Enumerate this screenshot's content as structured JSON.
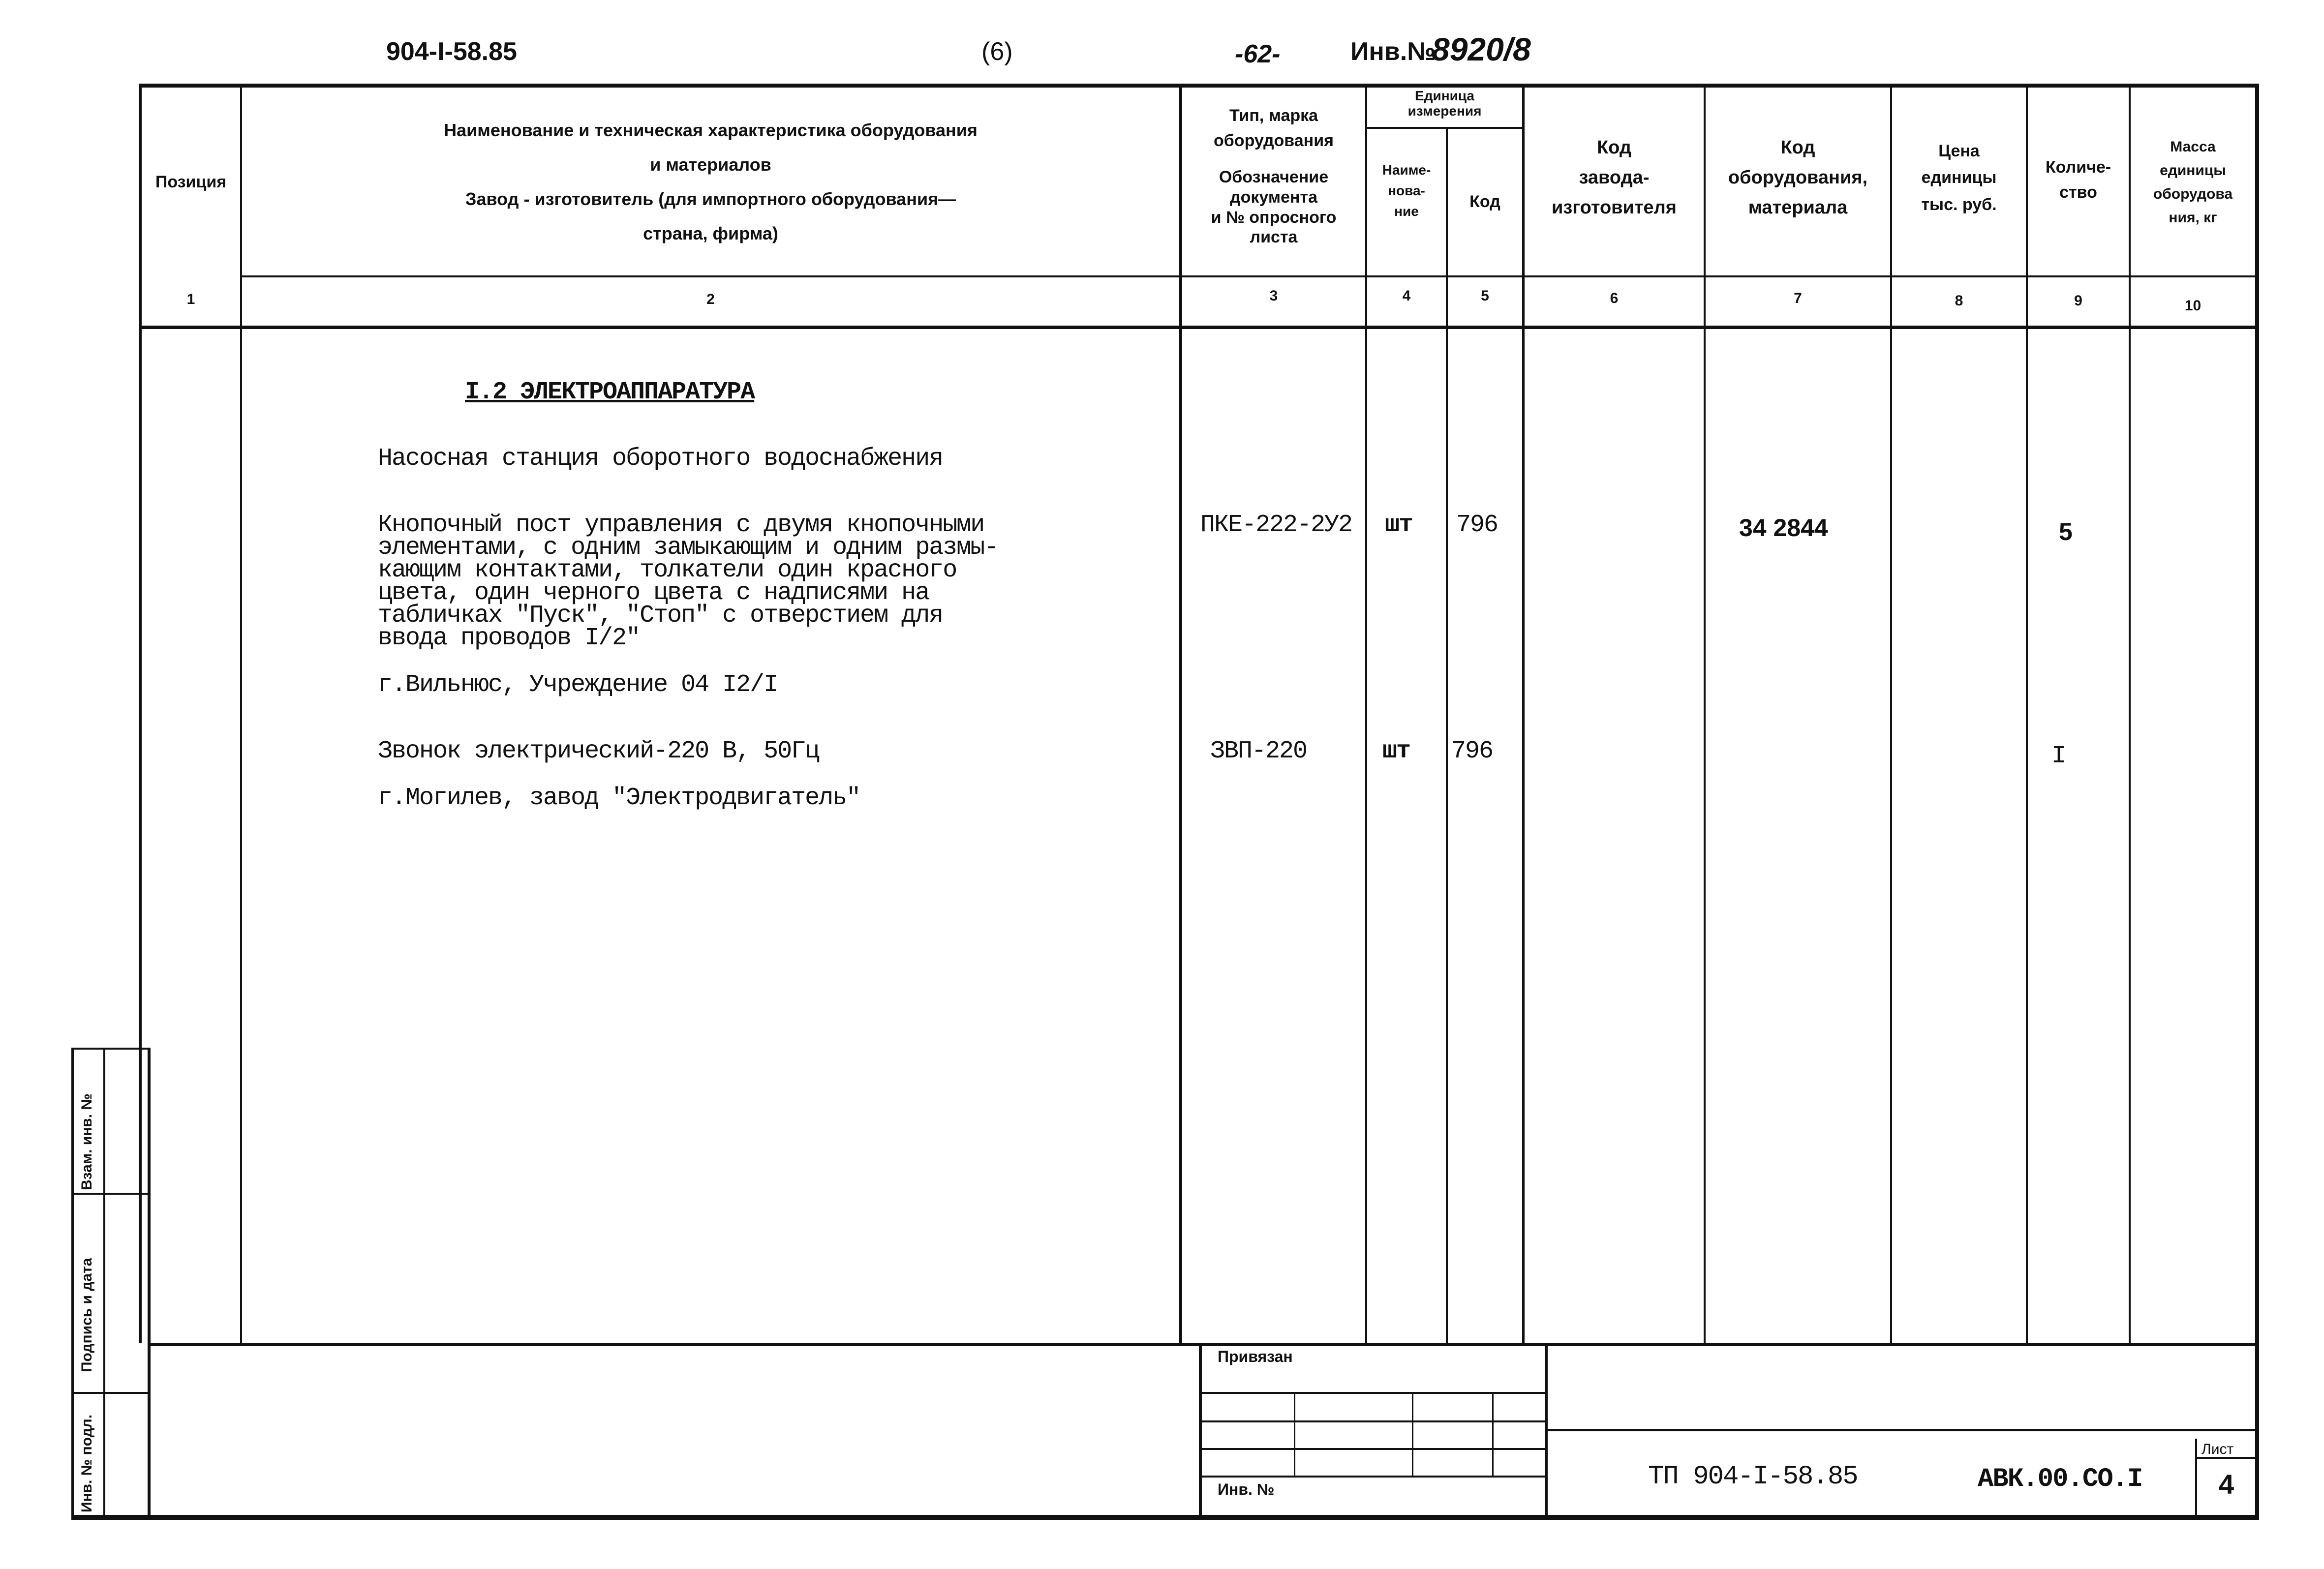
{
  "top": {
    "designation": "904-I-58.85",
    "sheet_paren": "(6)",
    "page_mark": "-62-",
    "inv_label": "Инв.№",
    "inv_number": "8920/8"
  },
  "headers": {
    "c1": "Позиция",
    "c2": "Наименование и техническая характеристика оборудования\nи материалов\nЗавод - изготовитель (для импортного оборудования—\nстрана, фирма)",
    "c3a": "Тип, марка\nоборудования",
    "c3b": "Обозначение\nдокумента\nи № опросного\nлиста",
    "c45": "Единица\nизмерения",
    "c4": "Наиме-\nнова-\nние",
    "c5": "Код",
    "c6": "Код\nзавода-\nизготовителя",
    "c7": "Код\nоборудования,\nматериала",
    "c8": "Цена\nединицы\nтыс. руб.",
    "c9": "Количе-\nство",
    "c10": "Масса\nединицы\nоборудова\nния, кг"
  },
  "col_numbers": [
    "1",
    "2",
    "3",
    "4",
    "5",
    "6",
    "7",
    "8",
    "9",
    "10"
  ],
  "body": {
    "section_title": "I.2 ЭЛЕКТРОАППАРАТУРА",
    "subtitle": "Насосная станция оборотного водоснабжения",
    "items": [
      {
        "name": "Кнопочный пост управления с двумя кнопочными\nэлементами, с одним замыкающим и одним размы-\nкающим контактами, толкатели один красного\nцвета, один черного цвета с надписями на\nтабличках \"Пуск\", \"Стоп\" с отверстием для\nввода проводов I/2\"",
        "maker": "г.Вильнюс, Учреждение 04 I2/I",
        "type": "ПКЕ-222-2У2",
        "unit": "шт",
        "unit_code": "796",
        "equip_code": "34 2844",
        "qty": "5"
      },
      {
        "name": "Звонок электрический-220 В, 50Гц",
        "maker": "г.Могилев, завод \"Электродвигатель\"",
        "type": "ЗВП-220",
        "unit": "шт",
        "unit_code": "796",
        "equip_code": "",
        "qty": "I"
      }
    ]
  },
  "stamp": {
    "privyazan": "Привязан",
    "inv_no": "Инв. №",
    "project": "ТП 904-I-58.85",
    "code": "АВК.00.СО.I",
    "sheet_label": "Лист",
    "sheet_no": "4"
  },
  "side": {
    "vzam": "Взам. инв. №",
    "podpis": "Подпись и дата",
    "inv_podl": "Инв. № подл."
  }
}
